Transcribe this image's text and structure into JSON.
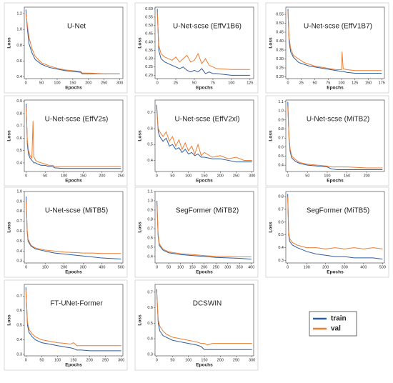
{
  "chart_data": [
    {
      "type": "line",
      "title": "U-Net",
      "xlabel": "Epochs",
      "ylabel": "Loss",
      "x": [
        0,
        5,
        10,
        20,
        30,
        50,
        75,
        100,
        125,
        150,
        175,
        180,
        200,
        250,
        300
      ],
      "series": [
        {
          "name": "train",
          "color": "#2e5c9c",
          "values": [
            1.25,
            1.0,
            0.82,
            0.7,
            0.62,
            0.56,
            0.52,
            0.5,
            0.48,
            0.47,
            0.46,
            0.44,
            0.44,
            0.44,
            0.44
          ]
        },
        {
          "name": "val",
          "color": "#ed7d31",
          "values": [
            1.2,
            1.05,
            0.9,
            0.75,
            0.66,
            0.58,
            0.54,
            0.51,
            0.49,
            0.48,
            0.47,
            0.45,
            0.45,
            0.44,
            0.44
          ]
        }
      ],
      "xlim": [
        -5,
        310
      ],
      "ylim": [
        0.38,
        1.28
      ],
      "xticks": [
        0,
        50,
        100,
        150,
        200,
        250,
        300
      ],
      "yticks": [
        0.4,
        0.6,
        0.8,
        {
          "value": 1.0,
          "label": "1.0"
        },
        1.2
      ]
    },
    {
      "type": "line",
      "title": "U-Net-scse (EffV1B6)",
      "xlabel": "Epochs",
      "ylabel": "Loss",
      "x": [
        0,
        2,
        5,
        10,
        15,
        20,
        25,
        30,
        35,
        40,
        45,
        50,
        55,
        60,
        65,
        70,
        75,
        80,
        100,
        125
      ],
      "series": [
        {
          "name": "train",
          "color": "#2e5c9c",
          "values": [
            0.6,
            0.35,
            0.3,
            0.28,
            0.27,
            0.26,
            0.25,
            0.24,
            0.25,
            0.23,
            0.22,
            0.23,
            0.22,
            0.24,
            0.21,
            0.22,
            0.21,
            0.21,
            0.2,
            0.2
          ]
        },
        {
          "name": "val",
          "color": "#ed7d31",
          "values": [
            0.58,
            0.38,
            0.33,
            0.31,
            0.3,
            0.29,
            0.31,
            0.28,
            0.3,
            0.32,
            0.28,
            0.29,
            0.33,
            0.27,
            0.3,
            0.26,
            0.25,
            0.24,
            0.235,
            0.235
          ]
        }
      ],
      "xlim": [
        -3,
        130
      ],
      "ylim": [
        0.18,
        0.61
      ],
      "xticks": [
        0,
        25,
        50,
        75,
        100,
        125
      ],
      "yticks": [
        {
          "value": 0.2,
          "label": "0.20"
        },
        0.25,
        {
          "value": 0.3,
          "label": "0.30"
        },
        0.35,
        {
          "value": 0.4,
          "label": "0.40"
        },
        0.45,
        {
          "value": 0.5,
          "label": "0.50"
        },
        0.55,
        {
          "value": 0.6,
          "label": "0.60"
        }
      ]
    },
    {
      "type": "line",
      "title": "U-Net-scse (EffV1B7)",
      "xlabel": "Epochs",
      "ylabel": "Loss",
      "x": [
        0,
        2,
        5,
        10,
        20,
        30,
        40,
        50,
        60,
        70,
        80,
        90,
        100,
        101,
        103,
        110,
        125,
        150,
        175
      ],
      "series": [
        {
          "name": "train",
          "color": "#2e5c9c",
          "values": [
            0.58,
            0.4,
            0.34,
            0.31,
            0.28,
            0.27,
            0.26,
            0.255,
            0.25,
            0.245,
            0.24,
            0.235,
            0.23,
            0.23,
            0.23,
            0.225,
            0.22,
            0.22,
            0.22
          ]
        },
        {
          "name": "val",
          "color": "#ed7d31",
          "values": [
            0.57,
            0.42,
            0.36,
            0.32,
            0.3,
            0.28,
            0.27,
            0.26,
            0.255,
            0.25,
            0.245,
            0.24,
            0.24,
            0.34,
            0.245,
            0.24,
            0.235,
            0.235,
            0.235
          ]
        }
      ],
      "xlim": [
        -4,
        180
      ],
      "ylim": [
        0.19,
        0.59
      ],
      "xticks": [
        0,
        25,
        50,
        75,
        100,
        125,
        150,
        175
      ],
      "yticks": [
        {
          "value": 0.2,
          "label": "0.20"
        },
        0.25,
        {
          "value": 0.3,
          "label": "0.30"
        },
        0.35,
        {
          "value": 0.4,
          "label": "0.40"
        },
        0.45,
        {
          "value": 0.5,
          "label": "0.50"
        },
        0.55
      ]
    },
    {
      "type": "line",
      "title": "U-Net-scse (EffV2s)",
      "xlabel": "Epochs",
      "ylabel": "Loss",
      "x": [
        0,
        3,
        6,
        10,
        15,
        18,
        20,
        25,
        30,
        40,
        50,
        60,
        70,
        75,
        100,
        150,
        200,
        250
      ],
      "series": [
        {
          "name": "train",
          "color": "#2e5c9c",
          "values": [
            0.88,
            0.55,
            0.47,
            0.44,
            0.42,
            0.41,
            0.4,
            0.4,
            0.39,
            0.38,
            0.38,
            0.37,
            0.37,
            0.36,
            0.355,
            0.355,
            0.355,
            0.355
          ]
        },
        {
          "name": "val",
          "color": "#ed7d31",
          "values": [
            0.85,
            0.58,
            0.5,
            0.46,
            0.44,
            0.74,
            0.45,
            0.42,
            0.41,
            0.4,
            0.39,
            0.38,
            0.38,
            0.37,
            0.37,
            0.37,
            0.37,
            0.37
          ]
        }
      ],
      "xlim": [
        -5,
        255
      ],
      "ylim": [
        0.33,
        0.91
      ],
      "xticks": [
        0,
        50,
        100,
        150,
        200,
        250
      ],
      "yticks": [
        0.4,
        0.5,
        0.6,
        0.7,
        0.8,
        0.9
      ]
    },
    {
      "type": "line",
      "title": "U-Net-scse (EffV2xl)",
      "xlabel": "Epochs",
      "ylabel": "Loss",
      "x": [
        0,
        5,
        10,
        20,
        30,
        40,
        50,
        60,
        70,
        80,
        90,
        100,
        110,
        120,
        130,
        140,
        150,
        175,
        200,
        225,
        250,
        275,
        300
      ],
      "series": [
        {
          "name": "train",
          "color": "#2e5c9c",
          "values": [
            0.75,
            0.58,
            0.55,
            0.52,
            0.54,
            0.49,
            0.5,
            0.47,
            0.48,
            0.45,
            0.47,
            0.44,
            0.45,
            0.43,
            0.44,
            0.42,
            0.42,
            0.41,
            0.41,
            0.4,
            0.39,
            0.39,
            0.39
          ]
        },
        {
          "name": "val",
          "color": "#ed7d31",
          "values": [
            0.72,
            0.6,
            0.58,
            0.55,
            0.58,
            0.52,
            0.55,
            0.49,
            0.53,
            0.47,
            0.51,
            0.46,
            0.49,
            0.44,
            0.5,
            0.43,
            0.45,
            0.42,
            0.43,
            0.41,
            0.42,
            0.4,
            0.4
          ]
        }
      ],
      "xlim": [
        -5,
        305
      ],
      "ylim": [
        0.33,
        0.78
      ],
      "xticks": [
        0,
        50,
        100,
        150,
        200,
        250,
        300
      ],
      "yticks": [
        0.4,
        0.5,
        0.6,
        0.7
      ]
    },
    {
      "type": "line",
      "title": "U-Net-scse (MiTB2)",
      "xlabel": "Epochs",
      "ylabel": "Loss",
      "x": [
        0,
        3,
        6,
        10,
        20,
        30,
        50,
        75,
        100,
        110,
        125,
        150,
        200,
        240
      ],
      "series": [
        {
          "name": "train",
          "color": "#2e5c9c",
          "values": [
            1.1,
            0.7,
            0.55,
            0.48,
            0.44,
            0.42,
            0.4,
            0.39,
            0.38,
            0.36,
            0.35,
            0.35,
            0.35,
            0.35
          ]
        },
        {
          "name": "val",
          "color": "#ed7d31",
          "values": [
            1.05,
            0.72,
            0.58,
            0.5,
            0.46,
            0.43,
            0.41,
            0.4,
            0.39,
            0.38,
            0.38,
            0.38,
            0.37,
            0.37
          ]
        }
      ],
      "xlim": [
        -5,
        245
      ],
      "ylim": [
        0.33,
        1.12
      ],
      "xticks": [
        0,
        50,
        100,
        150,
        200
      ],
      "yticks": [
        0.4,
        0.5,
        0.6,
        0.7,
        0.8,
        0.9,
        {
          "value": 1.0,
          "label": "1.0"
        },
        1.1
      ]
    },
    {
      "type": "line",
      "title": "U-Net-scse (MiTB5)",
      "xlabel": "Epochs",
      "ylabel": "Loss",
      "x": [
        0,
        5,
        10,
        25,
        50,
        75,
        100,
        150,
        200,
        250,
        300,
        350,
        400,
        450,
        500
      ],
      "series": [
        {
          "name": "train",
          "color": "#2e5c9c",
          "values": [
            0.95,
            0.6,
            0.5,
            0.45,
            0.42,
            0.41,
            0.4,
            0.38,
            0.37,
            0.36,
            0.35,
            0.34,
            0.33,
            0.325,
            0.32
          ]
        },
        {
          "name": "val",
          "color": "#ed7d31",
          "values": [
            0.9,
            0.62,
            0.52,
            0.46,
            0.43,
            0.42,
            0.41,
            0.4,
            0.39,
            0.385,
            0.38,
            0.38,
            0.375,
            0.375,
            0.375
          ]
        }
      ],
      "xlim": [
        -10,
        510
      ],
      "ylim": [
        0.28,
        1.0
      ],
      "xticks": [
        0,
        100,
        200,
        300,
        400,
        500
      ],
      "yticks": [
        0.3,
        0.4,
        0.5,
        0.6,
        0.7,
        0.8,
        0.9,
        {
          "value": 1.0,
          "label": "1.0"
        }
      ]
    },
    {
      "type": "line",
      "title": "SegFormer (MiTB2)",
      "xlabel": "Epochs",
      "ylabel": "Loss",
      "x": [
        0,
        5,
        10,
        25,
        50,
        75,
        100,
        150,
        200,
        250,
        300,
        350,
        400
      ],
      "series": [
        {
          "name": "train",
          "color": "#2e5c9c",
          "values": [
            1.0,
            0.62,
            0.52,
            0.47,
            0.44,
            0.43,
            0.42,
            0.41,
            0.4,
            0.39,
            0.385,
            0.38,
            0.37
          ]
        },
        {
          "name": "val",
          "color": "#ed7d31",
          "values": [
            0.95,
            0.64,
            0.54,
            0.48,
            0.45,
            0.44,
            0.43,
            0.42,
            0.41,
            0.4,
            0.4,
            0.395,
            0.395
          ]
        }
      ],
      "xlim": [
        -8,
        410
      ],
      "ylim": [
        0.33,
        1.1
      ],
      "xticks": [
        0,
        50,
        100,
        150,
        200,
        250,
        300,
        350,
        400
      ],
      "yticks": [
        0.4,
        0.5,
        0.6,
        0.7,
        0.8,
        0.9,
        {
          "value": 1.0,
          "label": "1.0"
        },
        1.1
      ]
    },
    {
      "type": "line",
      "title": "SegFormer (MiTB5)",
      "xlabel": "Epochs",
      "ylabel": "Loss",
      "x": [
        0,
        5,
        10,
        25,
        50,
        100,
        150,
        200,
        250,
        300,
        350,
        400,
        450,
        500
      ],
      "series": [
        {
          "name": "train",
          "color": "#2e5c9c",
          "values": [
            0.82,
            0.5,
            0.45,
            0.42,
            0.4,
            0.37,
            0.35,
            0.34,
            0.33,
            0.33,
            0.32,
            0.32,
            0.32,
            0.31
          ]
        },
        {
          "name": "val",
          "color": "#ed7d31",
          "values": [
            0.8,
            0.52,
            0.47,
            0.44,
            0.42,
            0.4,
            0.4,
            0.39,
            0.4,
            0.39,
            0.4,
            0.39,
            0.4,
            0.39
          ]
        }
      ],
      "xlim": [
        -10,
        510
      ],
      "ylim": [
        0.28,
        0.84
      ],
      "xticks": [
        0,
        100,
        200,
        300,
        400,
        500
      ],
      "yticks": [
        0.3,
        0.4,
        0.5,
        0.6,
        0.7,
        0.8
      ]
    },
    {
      "type": "line",
      "title": "FT-UNet-Former",
      "xlabel": "Epochs",
      "ylabel": "Loss",
      "x": [
        0,
        5,
        10,
        20,
        30,
        50,
        75,
        100,
        125,
        140,
        150,
        160,
        175,
        200,
        250,
        300
      ],
      "series": [
        {
          "name": "train",
          "color": "#2e5c9c",
          "values": [
            0.76,
            0.5,
            0.45,
            0.42,
            0.4,
            0.38,
            0.37,
            0.36,
            0.35,
            0.345,
            0.34,
            0.33,
            0.33,
            0.325,
            0.325,
            0.325
          ]
        },
        {
          "name": "val",
          "color": "#ed7d31",
          "values": [
            0.74,
            0.52,
            0.47,
            0.44,
            0.42,
            0.4,
            0.39,
            0.38,
            0.375,
            0.37,
            0.38,
            0.36,
            0.36,
            0.36,
            0.36,
            0.36
          ]
        }
      ],
      "xlim": [
        -5,
        305
      ],
      "ylim": [
        0.29,
        0.78
      ],
      "xticks": [
        0,
        50,
        100,
        150,
        200,
        250,
        300
      ],
      "yticks": [
        0.3,
        0.4,
        0.5,
        0.6,
        0.7
      ]
    },
    {
      "type": "line",
      "title": "DCSWIN",
      "xlabel": "Epochs",
      "ylabel": "Loss",
      "x": [
        0,
        5,
        10,
        20,
        30,
        50,
        75,
        100,
        125,
        140,
        150,
        160,
        175,
        200,
        250,
        300
      ],
      "series": [
        {
          "name": "train",
          "color": "#2e5c9c",
          "values": [
            0.72,
            0.5,
            0.45,
            0.42,
            0.41,
            0.39,
            0.38,
            0.37,
            0.36,
            0.35,
            0.33,
            0.33,
            0.33,
            0.33,
            0.33,
            0.33
          ]
        },
        {
          "name": "val",
          "color": "#ed7d31",
          "values": [
            0.7,
            0.52,
            0.48,
            0.45,
            0.43,
            0.41,
            0.4,
            0.39,
            0.38,
            0.37,
            0.37,
            0.36,
            0.37,
            0.37,
            0.37,
            0.37
          ]
        }
      ],
      "xlim": [
        -5,
        305
      ],
      "ylim": [
        0.29,
        0.75
      ],
      "xticks": [
        0,
        50,
        100,
        150,
        200,
        250,
        300
      ],
      "yticks": [
        0.3,
        0.4,
        0.5,
        0.6,
        0.7
      ]
    }
  ]
}
